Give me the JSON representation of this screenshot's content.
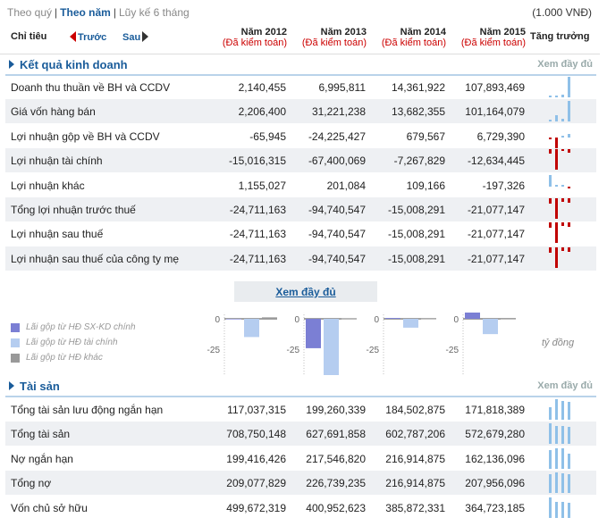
{
  "topbar": {
    "tabs": [
      {
        "label": "Theo quý",
        "active": false
      },
      {
        "label": "Theo năm",
        "active": true
      },
      {
        "label": "Lũy kế 6 tháng",
        "active": false
      }
    ],
    "unit": "(1.000 VNĐ)"
  },
  "header": {
    "label_col": "Chỉ tiêu",
    "prev": "Trước",
    "next": "Sau",
    "years": [
      {
        "year": "Năm 2012",
        "audit": "(Đã kiểm toán)"
      },
      {
        "year": "Năm 2013",
        "audit": "(Đã kiểm toán)"
      },
      {
        "year": "Năm 2014",
        "audit": "(Đã kiểm toán)"
      },
      {
        "year": "Năm 2015",
        "audit": "(Đã kiểm toán)"
      }
    ],
    "growth": "Tăng trưởng"
  },
  "income": {
    "title": "Kết quả kinh doanh",
    "more": "Xem đầy đủ",
    "rows": [
      {
        "label": "Doanh thu thuần về BH và CCDV",
        "values": [
          "2,140,455",
          "6,995,811",
          "14,361,922",
          "107,893,469"
        ],
        "nums": [
          2140455,
          6995811,
          14361922,
          107893469
        ]
      },
      {
        "label": "Giá vốn hàng bán",
        "values": [
          "2,206,400",
          "31,221,238",
          "13,682,355",
          "101,164,079"
        ],
        "nums": [
          2206400,
          31221238,
          13682355,
          101164079
        ]
      },
      {
        "label": "Lợi nhuận gộp về BH và CCDV",
        "values": [
          "-65,945",
          "-24,225,427",
          "679,567",
          "6,729,390"
        ],
        "nums": [
          -65945,
          -24225427,
          679567,
          6729390
        ]
      },
      {
        "label": "Lợi nhuận tài chính",
        "values": [
          "-15,016,315",
          "-67,400,069",
          "-7,267,829",
          "-12,634,445"
        ],
        "nums": [
          -15016315,
          -67400069,
          -7267829,
          -12634445
        ]
      },
      {
        "label": "Lợi nhuận khác",
        "values": [
          "1,155,027",
          "201,084",
          "109,166",
          "-197,326"
        ],
        "nums": [
          1155027,
          201084,
          109166,
          -197326
        ]
      },
      {
        "label": "Tổng lợi nhuận trước thuế",
        "values": [
          "-24,711,163",
          "-94,740,547",
          "-15,008,291",
          "-21,077,147"
        ],
        "nums": [
          -24711163,
          -94740547,
          -15008291,
          -21077147
        ]
      },
      {
        "label": "Lợi nhuận sau thuế",
        "values": [
          "-24,711,163",
          "-94,740,547",
          "-15,008,291",
          "-21,077,147"
        ],
        "nums": [
          -24711163,
          -94740547,
          -15008291,
          -21077147
        ]
      },
      {
        "label": "Lợi nhuận sau thuế của công ty mẹ",
        "values": [
          "-24,711,163",
          "-94,740,547",
          "-15,008,291",
          "-21,077,147"
        ],
        "nums": [
          -24711163,
          -94740547,
          -15008291,
          -21077147
        ]
      }
    ]
  },
  "more_button": "Xem đầy đủ",
  "profit_chart": {
    "legend": [
      {
        "label": "Lãi gộp từ HĐ SX-KD chính",
        "color": "#7b7fd4"
      },
      {
        "label": "Lãi gộp từ HĐ tài chính",
        "color": "#b5cdf0"
      },
      {
        "label": "Lãi gộp từ HĐ khác",
        "color": "#999999"
      }
    ],
    "unit": "tỷ đồng",
    "ticks": [
      "0",
      "-25",
      "-50",
      "-75"
    ]
  },
  "chart_data": {
    "type": "bar",
    "categories": [
      "Năm 2012",
      "Năm 2013",
      "Năm 2014",
      "Năm 2015"
    ],
    "series": [
      {
        "name": "Lãi gộp từ HĐ SX-KD chính",
        "values": [
          -0.07,
          -24.2,
          0.7,
          6.7
        ]
      },
      {
        "name": "Lãi gộp từ HĐ tài chính",
        "values": [
          -15.0,
          -67.4,
          -7.3,
          -12.6
        ]
      },
      {
        "name": "Lãi gộp từ HĐ khác",
        "values": [
          1.2,
          0.2,
          0.1,
          -0.2
        ]
      }
    ],
    "ylim": [
      -75,
      8
    ],
    "yticks": [
      0,
      -25,
      -50,
      -75
    ]
  },
  "assets": {
    "title": "Tài sản",
    "more": "Xem đầy đủ",
    "rows": [
      {
        "label": "Tổng tài sản lưu động ngắn hạn",
        "values": [
          "117,037,315",
          "199,260,339",
          "184,502,875",
          "171,818,389"
        ],
        "nums": [
          117037315,
          199260339,
          184502875,
          171818389
        ]
      },
      {
        "label": "Tổng tài sản",
        "values": [
          "708,750,148",
          "627,691,858",
          "602,787,206",
          "572,679,280"
        ],
        "nums": [
          708750148,
          627691858,
          602787206,
          572679280
        ]
      },
      {
        "label": "Nợ ngắn hạn",
        "values": [
          "199,416,426",
          "217,546,820",
          "216,914,875",
          "162,136,096"
        ],
        "nums": [
          199416426,
          217546820,
          216914875,
          162136096
        ]
      },
      {
        "label": "Tổng nợ",
        "values": [
          "209,077,829",
          "226,739,235",
          "216,914,875",
          "207,956,096"
        ],
        "nums": [
          209077829,
          226739235,
          216914875,
          207956096
        ]
      },
      {
        "label": "Vốn chủ sở hữu",
        "values": [
          "499,672,319",
          "400,952,623",
          "385,872,331",
          "364,723,185"
        ],
        "nums": [
          499672319,
          400952623,
          385872331,
          364723185
        ]
      }
    ]
  }
}
